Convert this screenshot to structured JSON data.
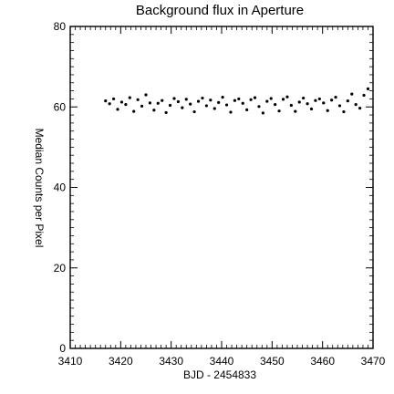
{
  "chart_data": {
    "type": "scatter",
    "title": "Background flux in Aperture",
    "xlabel": "BJD - 2454833",
    "ylabel": "Median Counts per Pixel",
    "xlim": [
      3410,
      3470
    ],
    "ylim": [
      0,
      80
    ],
    "x_ticks": [
      3410,
      3420,
      3430,
      3440,
      3450,
      3460,
      3470
    ],
    "y_ticks": [
      0,
      20,
      40,
      60,
      80
    ],
    "x_tick_labels": [
      "3410",
      "3420",
      "3430",
      "3440",
      "3450",
      "3460",
      "3470"
    ],
    "y_tick_labels": [
      "0",
      "20",
      "40",
      "60",
      "80"
    ],
    "grid": false,
    "legend": "none",
    "color": "#000000",
    "series": [
      {
        "x": [
          3417.0,
          3417.8,
          3418.6,
          3419.4,
          3420.2,
          3421.0,
          3421.8,
          3422.6,
          3423.4,
          3424.2,
          3425.0,
          3425.8,
          3426.6,
          3427.4,
          3428.2,
          3429.0,
          3429.8,
          3430.6,
          3431.4,
          3432.2,
          3433.0,
          3433.8,
          3434.6,
          3435.4,
          3436.2,
          3437.0,
          3437.8,
          3438.6,
          3439.4,
          3440.2,
          3441.0,
          3441.8,
          3442.6,
          3443.4,
          3444.2,
          3445.0,
          3445.8,
          3446.6,
          3447.4,
          3448.2,
          3449.0,
          3449.8,
          3450.6,
          3451.4,
          3452.2,
          3453.0,
          3453.8,
          3454.6,
          3455.4,
          3456.2,
          3457.0,
          3457.8,
          3458.6,
          3459.4,
          3460.2,
          3461.0,
          3461.8,
          3462.6,
          3463.4,
          3464.2,
          3465.0,
          3465.8,
          3466.6,
          3467.4,
          3468.2,
          3469.0
        ],
        "y": [
          61.5,
          60.8,
          62.0,
          59.4,
          61.2,
          60.6,
          62.3,
          58.9,
          61.8,
          60.2,
          63.0,
          61.0,
          59.2,
          60.9,
          61.6,
          58.6,
          60.4,
          62.1,
          61.3,
          59.8,
          61.9,
          60.7,
          58.8,
          61.4,
          62.2,
          60.3,
          61.7,
          59.6,
          61.1,
          62.4,
          60.5,
          58.7,
          61.6,
          62.0,
          60.9,
          59.3,
          61.8,
          62.3,
          60.1,
          58.5,
          61.4,
          62.1,
          60.6,
          59.0,
          61.9,
          62.5,
          60.4,
          58.9,
          61.2,
          62.2,
          60.8,
          59.5,
          61.6,
          62.0,
          61.0,
          59.1,
          61.7,
          62.4,
          60.3,
          58.8,
          61.5,
          63.2,
          60.6,
          59.7,
          62.9,
          64.5
        ]
      }
    ]
  }
}
